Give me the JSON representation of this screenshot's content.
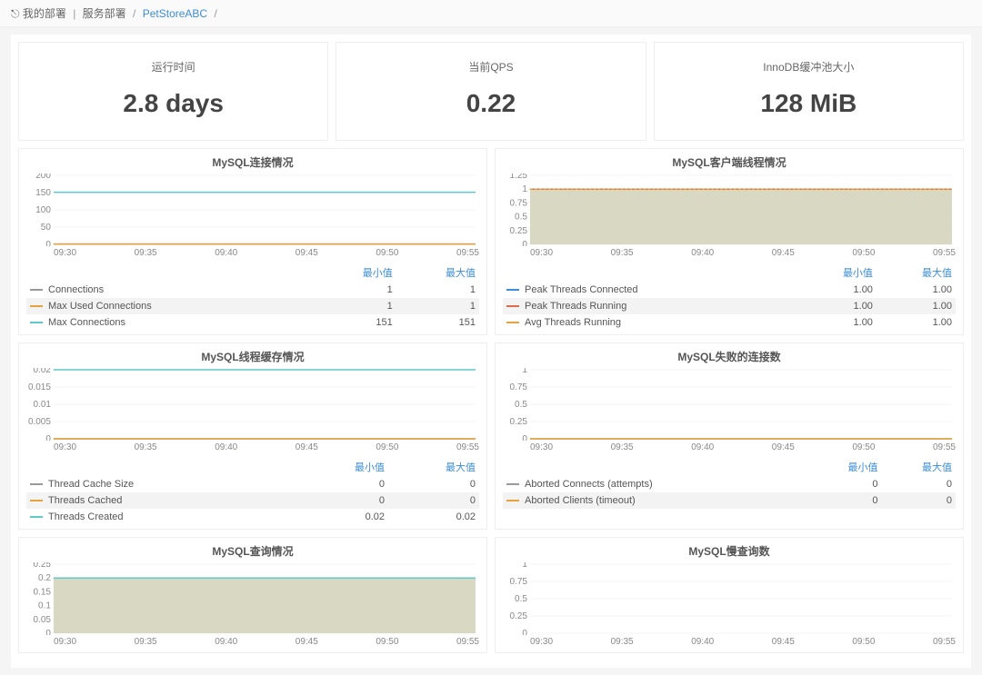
{
  "breadcrumb": {
    "icon": "⎋",
    "root": "我的部署",
    "section": "服务部署",
    "current": "PetStoreABC"
  },
  "stats": [
    {
      "title": "运行时间",
      "value": "2.8 days"
    },
    {
      "title": "当前QPS",
      "value": "0.22"
    },
    {
      "title": "InnoDB缓冲池大小",
      "value": "128 MiB"
    }
  ],
  "legend_headers": {
    "min": "最小值",
    "max": "最大值"
  },
  "xticks": [
    "09:30",
    "09:35",
    "09:40",
    "09:45",
    "09:50",
    "09:55"
  ],
  "charts": {
    "conn": {
      "title": "MySQL连接情况",
      "ylim": [
        0,
        200
      ],
      "yticks": [
        0,
        50,
        100,
        150,
        200
      ],
      "series": [
        {
          "name": "Connections",
          "color": "#999999",
          "values": [
            1,
            1,
            1,
            1,
            1,
            1
          ],
          "min": "1",
          "max": "1"
        },
        {
          "name": "Max Used Connections",
          "color": "#e6a23c",
          "values": [
            1,
            1,
            1,
            1,
            1,
            1
          ],
          "min": "1",
          "max": "1"
        },
        {
          "name": "Max Connections",
          "color": "#5dc9c9",
          "values": [
            151,
            151,
            151,
            151,
            151,
            151
          ],
          "min": "151",
          "max": "151"
        }
      ]
    },
    "client": {
      "title": "MySQL客户端线程情况",
      "ylim": [
        0,
        1.25
      ],
      "yticks": [
        0,
        0.25,
        0.5,
        0.75,
        1.0,
        1.25
      ],
      "area_color": "#d5d5bd",
      "series": [
        {
          "name": "Peak Threads Connected",
          "color": "#3b8dd9",
          "values": [
            1,
            1,
            1,
            1,
            1,
            1
          ],
          "min": "1.00",
          "max": "1.00"
        },
        {
          "name": "Peak Threads Running",
          "color": "#d96c4a",
          "values": [
            1,
            1,
            1,
            1,
            1,
            1
          ],
          "min": "1.00",
          "max": "1.00"
        },
        {
          "name": "Avg Threads Running",
          "color": "#e6a23c",
          "values": [
            1,
            1,
            1,
            1,
            1,
            1
          ],
          "min": "1.00",
          "max": "1.00",
          "dashed": true
        }
      ]
    },
    "threadcache": {
      "title": "MySQL线程缓存情况",
      "ylim": [
        0,
        0.02
      ],
      "yticks": [
        0,
        0.005,
        0.01,
        0.015,
        0.02
      ],
      "series": [
        {
          "name": "Thread Cache Size",
          "color": "#999999",
          "values": [
            0,
            0,
            0,
            0,
            0,
            0
          ],
          "min": "0",
          "max": "0"
        },
        {
          "name": "Threads Cached",
          "color": "#e6a23c",
          "values": [
            0,
            0,
            0,
            0,
            0,
            0
          ],
          "min": "0",
          "max": "0"
        },
        {
          "name": "Threads Created",
          "color": "#5dc9c9",
          "values": [
            0.02,
            0.02,
            0.02,
            0.02,
            0.02,
            0.02
          ],
          "min": "0.02",
          "max": "0.02"
        }
      ]
    },
    "fail": {
      "title": "MySQL失败的连接数",
      "ylim": [
        0,
        1.0
      ],
      "yticks": [
        0,
        0.25,
        0.5,
        0.75,
        1.0
      ],
      "series": [
        {
          "name": "Aborted Connects (attempts)",
          "color": "#999999",
          "values": [
            0,
            0,
            0,
            0,
            0,
            0
          ],
          "min": "0",
          "max": "0"
        },
        {
          "name": "Aborted Clients (timeout)",
          "color": "#e6a23c",
          "values": [
            0,
            0,
            0,
            0,
            0,
            0
          ],
          "min": "0",
          "max": "0"
        }
      ]
    },
    "query": {
      "title": "MySQL查询情况",
      "ylim": [
        0,
        0.25
      ],
      "yticks": [
        0,
        0.05,
        0.1,
        0.15,
        0.2,
        0.25
      ],
      "area_color": "#d5d5bd",
      "series": [
        {
          "name": "",
          "color": "#5dc9c9",
          "values": [
            0.2,
            0.2,
            0.2,
            0.2,
            0.2,
            0.2
          ]
        }
      ]
    },
    "slow": {
      "title": "MySQL慢查询数",
      "ylim": [
        0,
        1.0
      ],
      "yticks": [
        0,
        0.25,
        0.5,
        0.75,
        1.0
      ],
      "series": []
    }
  },
  "chart_style": {
    "gridline_color": "#e8e8e8",
    "axis_color": "#ccc",
    "background": "#ffffff",
    "y_label_fontsize": 10,
    "line_width": 1.5
  }
}
